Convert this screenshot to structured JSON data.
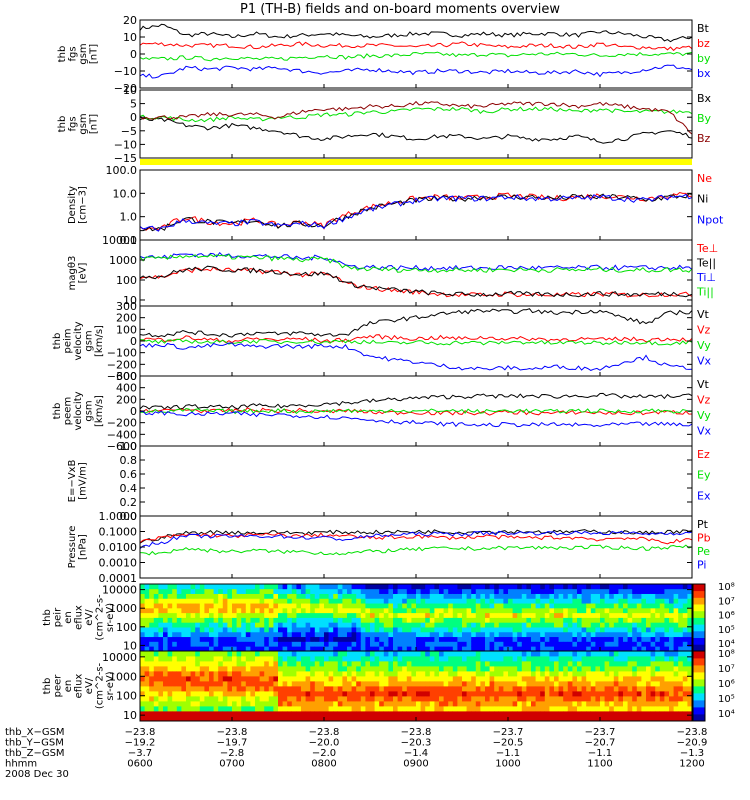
{
  "title": "P1  (TH-B) fields and on-board moments overview",
  "colors": {
    "black": "#000000",
    "red": "#ff0000",
    "green": "#00e000",
    "blue": "#0000ff",
    "maroon": "#8b0000",
    "yellow": "#ffff00"
  },
  "chart_data": [
    {
      "type": "line",
      "ylabel": [
        "thb",
        "fgs",
        "gsm",
        "[nT]"
      ],
      "ylim": [
        -20,
        20
      ],
      "yticks": [
        "20",
        "10",
        "0",
        "−10",
        "−20"
      ],
      "tickvals": [
        20,
        10,
        0,
        -10,
        -20
      ],
      "series": [
        {
          "name": "Bt",
          "color": "black",
          "values": [
            15,
            17,
            11,
            12,
            10,
            12,
            10,
            11,
            12,
            11,
            10,
            11,
            12,
            12,
            11,
            12,
            11,
            12,
            12,
            11,
            13,
            12,
            10,
            8,
            10
          ]
        },
        {
          "name": "bz",
          "color": "red",
          "values": [
            6,
            6,
            5,
            5,
            5,
            4,
            5,
            6,
            5,
            5,
            5,
            5,
            4,
            5,
            6,
            5,
            4,
            5,
            5,
            4,
            6,
            4,
            4,
            3,
            4
          ]
        },
        {
          "name": "by",
          "color": "green",
          "values": [
            -3,
            -3,
            -2,
            -3,
            -2,
            -3,
            -3,
            -2,
            -1,
            -2,
            -1,
            -1,
            0,
            0,
            -1,
            0,
            -1,
            0,
            0,
            0,
            -1,
            0,
            0,
            0,
            0
          ]
        },
        {
          "name": "bx",
          "color": "blue",
          "values": [
            -13,
            -13,
            -8,
            -9,
            -8,
            -9,
            -8,
            -10,
            -11,
            -10,
            -9,
            -10,
            -11,
            -10,
            -10,
            -11,
            -10,
            -11,
            -11,
            -10,
            -12,
            -11,
            -9,
            -7,
            -9
          ]
        }
      ]
    },
    {
      "type": "line",
      "ylabel": [
        "thb",
        "fgs",
        "gsm",
        "[nT]"
      ],
      "ylim": [
        -15,
        10
      ],
      "yticks": [
        "10",
        "5",
        "0",
        "−5",
        "−10",
        "−15"
      ],
      "tickvals": [
        10,
        5,
        0,
        -5,
        -10,
        -15
      ],
      "series": [
        {
          "name": "Bx",
          "color": "black",
          "values": [
            -1,
            -1,
            -3,
            -4,
            -3,
            -4,
            -5,
            -7,
            -8,
            -7,
            -6,
            -7,
            -8,
            -7,
            -7,
            -8,
            -7,
            -8,
            -8,
            -7,
            -9,
            -8,
            -6,
            -5,
            -7
          ]
        },
        {
          "name": "By",
          "color": "green",
          "values": [
            0,
            0,
            -1,
            -1,
            0,
            -1,
            0,
            0,
            1,
            1,
            2,
            2,
            3,
            3,
            3,
            2,
            3,
            3,
            3,
            2,
            3,
            2,
            2,
            2,
            2
          ]
        },
        {
          "name": "Bz",
          "color": "maroon",
          "values": [
            0,
            0,
            0,
            1,
            1,
            1,
            0,
            2,
            3,
            3,
            4,
            4,
            5,
            5,
            4,
            4,
            5,
            5,
            5,
            4,
            5,
            4,
            3,
            2,
            -6
          ]
        }
      ]
    },
    {
      "type": "line",
      "log": true,
      "ylabel": [
        "Density",
        "[cm−3]"
      ],
      "ylim": [
        0.1,
        100
      ],
      "yticks": [
        "100.0",
        "10.0",
        "1.0",
        "0.1"
      ],
      "tickvals": [
        100,
        10,
        1,
        0.1
      ],
      "series": [
        {
          "name": "Ne",
          "color": "red",
          "values": [
            0.3,
            0.3,
            0.9,
            0.6,
            0.5,
            0.7,
            0.4,
            0.6,
            0.4,
            1.2,
            2.5,
            4,
            6,
            7,
            6,
            7,
            8,
            7,
            6,
            7,
            8,
            7,
            6,
            8,
            9
          ]
        },
        {
          "name": "Ni",
          "color": "black",
          "values": [
            0.3,
            0.3,
            0.8,
            0.6,
            0.5,
            0.7,
            0.4,
            0.5,
            0.4,
            1.0,
            2.2,
            3.5,
            5,
            6,
            6,
            7,
            7,
            7,
            6,
            7,
            7,
            7,
            5,
            7,
            8
          ]
        },
        {
          "name": "Npot",
          "color": "blue",
          "values": [
            0.3,
            0.3,
            0.7,
            0.5,
            0.5,
            0.6,
            0.4,
            0.5,
            0.4,
            0.9,
            2,
            3.2,
            5,
            6,
            6,
            6,
            7,
            6,
            6,
            6,
            7,
            6,
            5,
            7,
            8
          ]
        }
      ]
    },
    {
      "type": "line",
      "log": true,
      "ylabel": [
        "magθ3",
        "[eV]"
      ],
      "ylim": [
        5,
        10000
      ],
      "yticks": [
        "10000",
        "1000",
        "100",
        "10"
      ],
      "tickvals": [
        10000,
        1000,
        100,
        10
      ],
      "series": [
        {
          "name": "Te⊥",
          "color": "red",
          "values": [
            150,
            140,
            300,
            350,
            300,
            280,
            250,
            180,
            200,
            60,
            40,
            30,
            25,
            20,
            18,
            18,
            20,
            18,
            18,
            18,
            20,
            18,
            18,
            20,
            18
          ]
        },
        {
          "name": "Te||",
          "color": "black",
          "values": [
            160,
            150,
            330,
            380,
            320,
            300,
            260,
            190,
            210,
            65,
            42,
            32,
            26,
            21,
            19,
            19,
            21,
            19,
            19,
            19,
            21,
            19,
            19,
            21,
            19
          ]
        },
        {
          "name": "Ti⊥",
          "color": "blue",
          "values": [
            1500,
            1300,
            2000,
            1800,
            1700,
            1600,
            1500,
            1200,
            1400,
            500,
            450,
            420,
            400,
            400,
            390,
            400,
            420,
            400,
            400,
            400,
            420,
            410,
            400,
            420,
            400
          ]
        },
        {
          "name": "Ti||",
          "color": "green",
          "values": [
            1200,
            1100,
            1700,
            1500,
            1400,
            1300,
            1200,
            1000,
            1100,
            400,
            350,
            330,
            320,
            320,
            310,
            320,
            330,
            320,
            320,
            320,
            330,
            320,
            310,
            330,
            320
          ]
        }
      ]
    },
    {
      "type": "line",
      "ylabel": [
        "thb",
        "peim",
        "velocity",
        "gsm",
        "[km/s]"
      ],
      "ylim": [
        -300,
        300
      ],
      "yticks": [
        "300",
        "200",
        "100",
        "0",
        "−100",
        "−200",
        "−300"
      ],
      "tickvals": [
        300,
        200,
        100,
        0,
        -100,
        -200,
        -300
      ],
      "series": [
        {
          "name": "Vt",
          "color": "black",
          "values": [
            60,
            50,
            80,
            60,
            50,
            70,
            60,
            70,
            50,
            60,
            150,
            180,
            200,
            230,
            250,
            260,
            250,
            260,
            240,
            250,
            260,
            200,
            150,
            240,
            250
          ]
        },
        {
          "name": "Vz",
          "color": "red",
          "values": [
            20,
            10,
            30,
            10,
            0,
            20,
            10,
            20,
            0,
            10,
            40,
            30,
            20,
            30,
            20,
            30,
            20,
            20,
            10,
            20,
            10,
            20,
            10,
            20,
            10
          ]
        },
        {
          "name": "Vy",
          "color": "green",
          "values": [
            0,
            -10,
            0,
            -10,
            -10,
            0,
            -10,
            0,
            -10,
            0,
            -10,
            -20,
            -10,
            -20,
            -10,
            -20,
            -10,
            -10,
            -20,
            -10,
            -20,
            -10,
            -10,
            -20,
            -10
          ]
        },
        {
          "name": "Vx",
          "color": "blue",
          "values": [
            -40,
            -30,
            -60,
            -40,
            -30,
            -50,
            -40,
            -50,
            -40,
            -50,
            -130,
            -160,
            -180,
            -210,
            -230,
            -240,
            -230,
            -240,
            -220,
            -230,
            -240,
            -180,
            -140,
            -220,
            -230
          ]
        }
      ]
    },
    {
      "type": "line",
      "ylabel": [
        "thb",
        "peem",
        "velocity",
        "gsm",
        "[km/s]"
      ],
      "ylim": [
        -600,
        600
      ],
      "yticks": [
        "600",
        "400",
        "200",
        "0",
        "−200",
        "−400",
        "−600"
      ],
      "tickvals": [
        600,
        400,
        200,
        0,
        -200,
        -400,
        -600
      ],
      "series": [
        {
          "name": "Vt",
          "color": "black",
          "values": [
            60,
            50,
            80,
            70,
            60,
            90,
            80,
            100,
            120,
            140,
            170,
            200,
            220,
            240,
            250,
            260,
            250,
            260,
            250,
            260,
            270,
            250,
            240,
            250,
            260
          ]
        },
        {
          "name": "Vz",
          "color": "red",
          "values": [
            20,
            0,
            30,
            -10,
            10,
            20,
            0,
            10,
            -20,
            10,
            -20,
            -30,
            -20,
            -40,
            -30,
            -40,
            -20,
            -30,
            -40,
            -20,
            -30,
            -40,
            -30,
            -20,
            -30
          ]
        },
        {
          "name": "Vy",
          "color": "green",
          "values": [
            0,
            -10,
            10,
            0,
            -10,
            0,
            10,
            -10,
            0,
            10,
            -10,
            20,
            -10,
            10,
            0,
            -10,
            10,
            0,
            -10,
            10,
            0,
            -10,
            10,
            0,
            -10
          ]
        },
        {
          "name": "Vx",
          "color": "blue",
          "values": [
            -40,
            -30,
            -60,
            -50,
            -40,
            -70,
            -60,
            -80,
            -100,
            -120,
            -150,
            -180,
            -200,
            -220,
            -230,
            -240,
            -230,
            -240,
            -230,
            -240,
            -250,
            -230,
            -220,
            -230,
            -240
          ]
        }
      ]
    },
    {
      "type": "line",
      "ylabel": [
        "E=−VxB",
        "[mV/m]"
      ],
      "ylim": [
        0,
        1
      ],
      "yticks": [
        "1.0",
        "0.8",
        "0.6",
        "0.4",
        "0.2",
        "0.0"
      ],
      "tickvals": [
        1,
        0.8,
        0.6,
        0.4,
        0.2,
        0
      ],
      "series": [
        {
          "name": "Ez",
          "color": "red",
          "values": []
        },
        {
          "name": "Ey",
          "color": "green",
          "values": []
        },
        {
          "name": "Ex",
          "color": "blue",
          "values": []
        }
      ]
    },
    {
      "type": "line",
      "log": true,
      "ylabel": [
        "Pressure",
        "[nPa]"
      ],
      "ylim": [
        0.0001,
        1
      ],
      "yticks": [
        "1.0000",
        "0.1000",
        "0.0100",
        "0.0010",
        "0.0001"
      ],
      "tickvals": [
        1,
        0.1,
        0.01,
        0.001,
        0.0001
      ],
      "series": [
        {
          "name": "Pt",
          "color": "black",
          "values": [
            0.02,
            0.04,
            0.08,
            0.09,
            0.09,
            0.08,
            0.09,
            0.08,
            0.09,
            0.09,
            0.09,
            0.09,
            0.1,
            0.1,
            0.09,
            0.1,
            0.1,
            0.1,
            0.09,
            0.1,
            0.1,
            0.09,
            0.08,
            0.1,
            0.1
          ]
        },
        {
          "name": "Pb",
          "color": "red",
          "values": [
            0.02,
            0.04,
            0.06,
            0.06,
            0.05,
            0.06,
            0.06,
            0.05,
            0.06,
            0.05,
            0.04,
            0.04,
            0.05,
            0.04,
            0.04,
            0.05,
            0.04,
            0.04,
            0.04,
            0.04,
            0.03,
            0.04,
            0.03,
            0.02,
            0.03
          ]
        },
        {
          "name": "Pe",
          "color": "green",
          "values": [
            0.004,
            0.004,
            0.008,
            0.006,
            0.005,
            0.006,
            0.005,
            0.005,
            0.004,
            0.004,
            0.005,
            0.006,
            0.007,
            0.008,
            0.008,
            0.008,
            0.009,
            0.009,
            0.009,
            0.009,
            0.01,
            0.009,
            0.008,
            0.01,
            0.01
          ]
        },
        {
          "name": "Pi",
          "color": "blue",
          "values": [
            0.01,
            0.02,
            0.05,
            0.05,
            0.05,
            0.05,
            0.05,
            0.04,
            0.04,
            0.03,
            0.05,
            0.06,
            0.07,
            0.07,
            0.07,
            0.08,
            0.08,
            0.08,
            0.08,
            0.08,
            0.08,
            0.08,
            0.07,
            0.08,
            0.08
          ]
        }
      ]
    },
    {
      "type": "heatmap",
      "ylabel": [
        "thb",
        "peir",
        "en",
        "eflux",
        "eV/",
        "(cm^2-s-",
        "sr-eV)"
      ],
      "yticks": [
        "10000",
        "1000",
        "100",
        "10"
      ],
      "tickvals": [
        10000,
        1000,
        100,
        10
      ],
      "ylim": [
        5,
        20000
      ],
      "colorbar": {
        "ticks": [
          "10⁸",
          "10⁷",
          "10⁶",
          "10⁵",
          "10⁴"
        ]
      }
    },
    {
      "type": "heatmap",
      "ylabel": [
        "thb",
        "peer",
        "en",
        "eflux",
        "eV/",
        "(cm^2-s-",
        "sr-eV)"
      ],
      "yticks": [
        "10000",
        "1000",
        "100",
        "10"
      ],
      "tickvals": [
        10000,
        1000,
        100,
        10
      ],
      "ylim": [
        5,
        20000
      ],
      "colorbar": {
        "ticks": [
          "10⁸",
          "10⁷",
          "10⁶",
          "10⁵",
          "10⁴"
        ]
      }
    }
  ],
  "xaxis": {
    "labels": [
      "thb_X−GSM",
      "thb_Y−GSM",
      "thb_Z−GSM",
      "hhmm"
    ],
    "date": "2008 Dec 30",
    "columns": [
      [
        "−23.8",
        "−19.2",
        "−3.7",
        "0600"
      ],
      [
        "−23.8",
        "−19.7",
        "−2.8",
        "0700"
      ],
      [
        "−23.8",
        "−20.0",
        "−2.0",
        "0800"
      ],
      [
        "−23.8",
        "−20.3",
        "−1.4",
        "0900"
      ],
      [
        "−23.7",
        "−20.5",
        "−1.1",
        "1000"
      ],
      [
        "−23.7",
        "−20.7",
        "−1.1",
        "1100"
      ],
      [
        "−23.8",
        "−20.9",
        "−1.3",
        "1200"
      ]
    ]
  }
}
